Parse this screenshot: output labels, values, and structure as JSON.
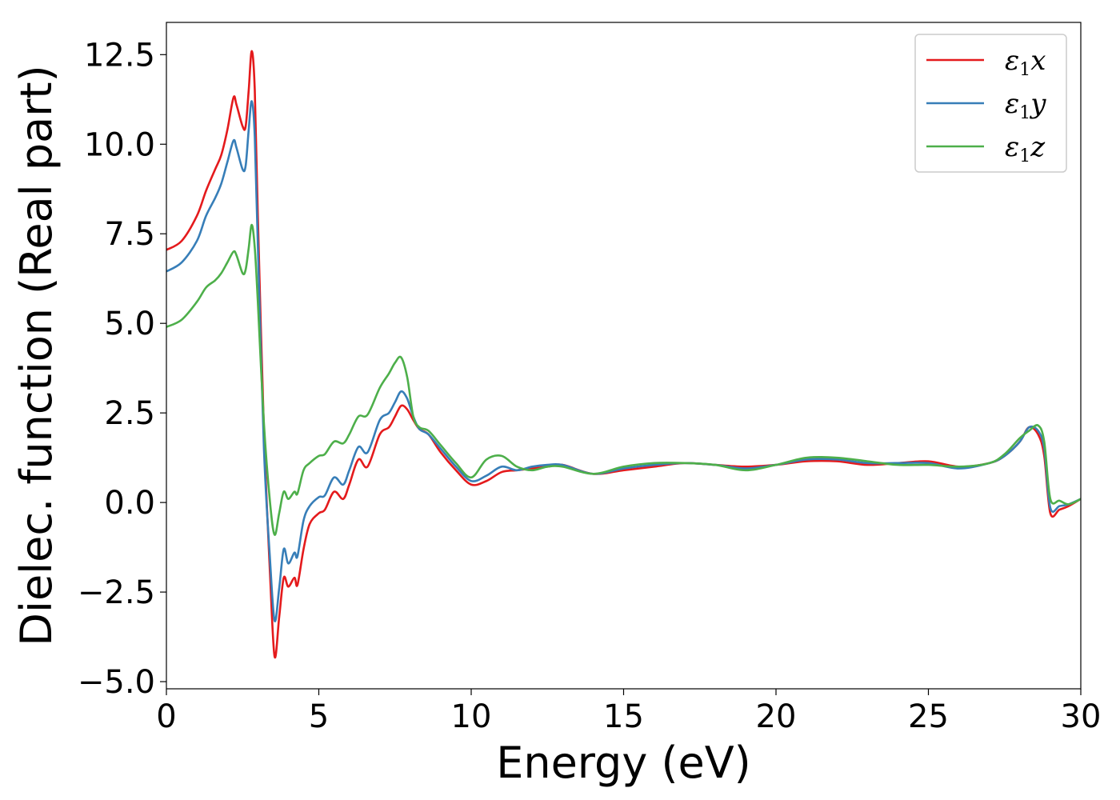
{
  "chart_data": {
    "type": "line",
    "title": "",
    "xlabel": "Energy (eV)",
    "ylabel": "Dielec. function (Real part)",
    "xlim": [
      0,
      30
    ],
    "ylim": [
      -5.2,
      13.4
    ],
    "xticks": [
      0,
      5,
      10,
      15,
      20,
      25,
      30
    ],
    "xtick_labels": [
      "0",
      "5",
      "10",
      "15",
      "20",
      "25",
      "30"
    ],
    "yticks": [
      -5.0,
      -2.5,
      0.0,
      2.5,
      5.0,
      7.5,
      10.0,
      12.5
    ],
    "ytick_labels": [
      "−5.0",
      "−2.5",
      "0.0",
      "2.5",
      "5.0",
      "7.5",
      "10.0",
      "12.5"
    ],
    "grid": false,
    "legend_position": "top-right",
    "series": [
      {
        "name": "ε1x",
        "legend_symbol": "ε",
        "legend_sub": "1",
        "legend_axis": "x",
        "color": "#e41a1c",
        "points": [
          [
            0.0,
            7.05
          ],
          [
            0.5,
            7.3
          ],
          [
            1.0,
            8.0
          ],
          [
            1.3,
            8.7
          ],
          [
            1.6,
            9.3
          ],
          [
            1.8,
            9.7
          ],
          [
            2.0,
            10.4
          ],
          [
            2.2,
            11.3
          ],
          [
            2.3,
            11.1
          ],
          [
            2.5,
            10.5
          ],
          [
            2.6,
            10.5
          ],
          [
            2.7,
            11.5
          ],
          [
            2.8,
            12.6
          ],
          [
            2.9,
            11.5
          ],
          [
            3.0,
            8.0
          ],
          [
            3.2,
            2.0
          ],
          [
            3.4,
            -2.0
          ],
          [
            3.55,
            -4.3
          ],
          [
            3.7,
            -3.2
          ],
          [
            3.85,
            -2.1
          ],
          [
            4.0,
            -2.35
          ],
          [
            4.2,
            -2.1
          ],
          [
            4.3,
            -2.3
          ],
          [
            4.5,
            -1.3
          ],
          [
            4.7,
            -0.6
          ],
          [
            5.0,
            -0.3
          ],
          [
            5.2,
            -0.2
          ],
          [
            5.5,
            0.3
          ],
          [
            5.8,
            0.1
          ],
          [
            6.0,
            0.5
          ],
          [
            6.3,
            1.2
          ],
          [
            6.6,
            1.0
          ],
          [
            7.0,
            1.9
          ],
          [
            7.3,
            2.1
          ],
          [
            7.5,
            2.4
          ],
          [
            7.7,
            2.7
          ],
          [
            7.9,
            2.6
          ],
          [
            8.1,
            2.3
          ],
          [
            8.3,
            2.05
          ],
          [
            8.6,
            1.9
          ],
          [
            9.0,
            1.4
          ],
          [
            9.5,
            0.9
          ],
          [
            10.0,
            0.5
          ],
          [
            10.5,
            0.6
          ],
          [
            11.0,
            0.85
          ],
          [
            11.5,
            0.9
          ],
          [
            12.0,
            0.95
          ],
          [
            12.5,
            1.0
          ],
          [
            13.0,
            1.05
          ],
          [
            14.0,
            0.8
          ],
          [
            15.0,
            0.9
          ],
          [
            16.0,
            1.0
          ],
          [
            17.0,
            1.1
          ],
          [
            18.0,
            1.05
          ],
          [
            19.0,
            1.0
          ],
          [
            20.0,
            1.05
          ],
          [
            21.0,
            1.15
          ],
          [
            22.0,
            1.15
          ],
          [
            23.0,
            1.05
          ],
          [
            24.0,
            1.1
          ],
          [
            25.0,
            1.15
          ],
          [
            26.0,
            1.0
          ],
          [
            27.0,
            1.1
          ],
          [
            27.5,
            1.3
          ],
          [
            28.0,
            1.7
          ],
          [
            28.3,
            2.1
          ],
          [
            28.6,
            1.9
          ],
          [
            28.8,
            1.3
          ],
          [
            29.0,
            -0.3
          ],
          [
            29.3,
            -0.2
          ],
          [
            29.6,
            -0.1
          ],
          [
            30.0,
            0.1
          ]
        ]
      },
      {
        "name": "ε1y",
        "legend_symbol": "ε",
        "legend_sub": "1",
        "legend_axis": "y",
        "color": "#377eb8",
        "points": [
          [
            0.0,
            6.45
          ],
          [
            0.5,
            6.7
          ],
          [
            1.0,
            7.3
          ],
          [
            1.3,
            8.0
          ],
          [
            1.6,
            8.5
          ],
          [
            1.8,
            8.9
          ],
          [
            2.0,
            9.5
          ],
          [
            2.2,
            10.1
          ],
          [
            2.3,
            9.9
          ],
          [
            2.5,
            9.3
          ],
          [
            2.6,
            9.4
          ],
          [
            2.7,
            10.4
          ],
          [
            2.8,
            11.2
          ],
          [
            2.9,
            10.2
          ],
          [
            3.0,
            7.2
          ],
          [
            3.2,
            1.5
          ],
          [
            3.4,
            -1.6
          ],
          [
            3.55,
            -3.3
          ],
          [
            3.7,
            -2.4
          ],
          [
            3.85,
            -1.3
          ],
          [
            4.0,
            -1.7
          ],
          [
            4.2,
            -1.4
          ],
          [
            4.3,
            -1.5
          ],
          [
            4.5,
            -0.5
          ],
          [
            4.7,
            -0.1
          ],
          [
            5.0,
            0.15
          ],
          [
            5.2,
            0.2
          ],
          [
            5.5,
            0.7
          ],
          [
            5.8,
            0.5
          ],
          [
            6.0,
            0.9
          ],
          [
            6.3,
            1.55
          ],
          [
            6.6,
            1.4
          ],
          [
            7.0,
            2.3
          ],
          [
            7.3,
            2.5
          ],
          [
            7.5,
            2.8
          ],
          [
            7.7,
            3.1
          ],
          [
            7.9,
            2.9
          ],
          [
            8.1,
            2.4
          ],
          [
            8.3,
            2.05
          ],
          [
            8.6,
            1.9
          ],
          [
            9.0,
            1.5
          ],
          [
            9.5,
            1.0
          ],
          [
            10.0,
            0.6
          ],
          [
            10.5,
            0.75
          ],
          [
            11.0,
            1.0
          ],
          [
            11.5,
            0.9
          ],
          [
            12.0,
            1.0
          ],
          [
            12.5,
            1.05
          ],
          [
            13.0,
            1.05
          ],
          [
            14.0,
            0.8
          ],
          [
            15.0,
            0.95
          ],
          [
            16.0,
            1.05
          ],
          [
            17.0,
            1.1
          ],
          [
            18.0,
            1.05
          ],
          [
            19.0,
            0.95
          ],
          [
            20.0,
            1.05
          ],
          [
            21.0,
            1.2
          ],
          [
            22.0,
            1.2
          ],
          [
            23.0,
            1.1
          ],
          [
            24.0,
            1.1
          ],
          [
            25.0,
            1.1
          ],
          [
            26.0,
            0.95
          ],
          [
            27.0,
            1.1
          ],
          [
            27.5,
            1.3
          ],
          [
            28.0,
            1.7
          ],
          [
            28.3,
            2.1
          ],
          [
            28.6,
            2.0
          ],
          [
            28.8,
            1.5
          ],
          [
            29.0,
            -0.15
          ],
          [
            29.3,
            -0.1
          ],
          [
            29.6,
            -0.05
          ],
          [
            30.0,
            0.1
          ]
        ]
      },
      {
        "name": "ε1z",
        "legend_symbol": "ε",
        "legend_sub": "1",
        "legend_axis": "z",
        "color": "#4daf4a",
        "points": [
          [
            0.0,
            4.9
          ],
          [
            0.5,
            5.1
          ],
          [
            1.0,
            5.6
          ],
          [
            1.3,
            6.0
          ],
          [
            1.6,
            6.2
          ],
          [
            1.8,
            6.4
          ],
          [
            2.0,
            6.7
          ],
          [
            2.2,
            7.0
          ],
          [
            2.3,
            6.9
          ],
          [
            2.5,
            6.4
          ],
          [
            2.6,
            6.5
          ],
          [
            2.7,
            7.1
          ],
          [
            2.8,
            7.75
          ],
          [
            2.9,
            7.1
          ],
          [
            3.0,
            5.6
          ],
          [
            3.2,
            2.2
          ],
          [
            3.4,
            0.0
          ],
          [
            3.55,
            -0.9
          ],
          [
            3.7,
            -0.3
          ],
          [
            3.85,
            0.3
          ],
          [
            4.0,
            0.1
          ],
          [
            4.2,
            0.3
          ],
          [
            4.3,
            0.25
          ],
          [
            4.5,
            0.9
          ],
          [
            4.7,
            1.1
          ],
          [
            5.0,
            1.3
          ],
          [
            5.2,
            1.35
          ],
          [
            5.5,
            1.7
          ],
          [
            5.8,
            1.65
          ],
          [
            6.0,
            1.9
          ],
          [
            6.3,
            2.4
          ],
          [
            6.6,
            2.45
          ],
          [
            7.0,
            3.2
          ],
          [
            7.3,
            3.6
          ],
          [
            7.5,
            3.9
          ],
          [
            7.7,
            4.05
          ],
          [
            7.9,
            3.5
          ],
          [
            8.1,
            2.4
          ],
          [
            8.3,
            2.1
          ],
          [
            8.6,
            2.0
          ],
          [
            9.0,
            1.6
          ],
          [
            9.5,
            1.1
          ],
          [
            10.0,
            0.7
          ],
          [
            10.5,
            1.2
          ],
          [
            11.0,
            1.3
          ],
          [
            11.5,
            1.0
          ],
          [
            12.0,
            0.9
          ],
          [
            12.5,
            1.0
          ],
          [
            13.0,
            1.0
          ],
          [
            14.0,
            0.8
          ],
          [
            15.0,
            1.0
          ],
          [
            16.0,
            1.1
          ],
          [
            17.0,
            1.1
          ],
          [
            18.0,
            1.05
          ],
          [
            19.0,
            0.9
          ],
          [
            20.0,
            1.05
          ],
          [
            21.0,
            1.25
          ],
          [
            22.0,
            1.25
          ],
          [
            23.0,
            1.15
          ],
          [
            24.0,
            1.05
          ],
          [
            25.0,
            1.05
          ],
          [
            26.0,
            1.0
          ],
          [
            27.0,
            1.1
          ],
          [
            27.5,
            1.35
          ],
          [
            28.0,
            1.8
          ],
          [
            28.3,
            2.0
          ],
          [
            28.6,
            2.15
          ],
          [
            28.8,
            1.7
          ],
          [
            29.0,
            0.1
          ],
          [
            29.3,
            0.05
          ],
          [
            29.6,
            -0.05
          ],
          [
            30.0,
            0.1
          ]
        ]
      }
    ]
  }
}
